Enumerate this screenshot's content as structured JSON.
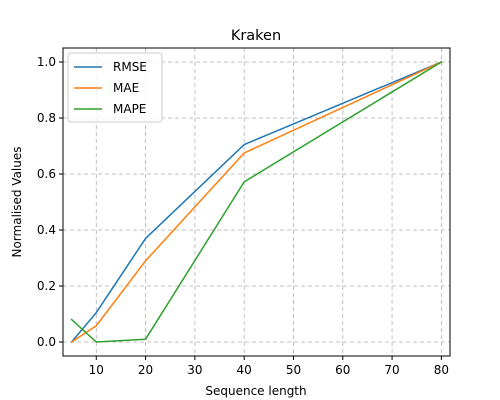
{
  "chart_data": {
    "type": "line",
    "title": "Kraken",
    "xlabel": "Sequence length",
    "ylabel": "Normalised Values",
    "xlim": [
      3.25,
      81.75
    ],
    "ylim": [
      -0.05,
      1.05
    ],
    "xticks": [
      10,
      20,
      30,
      40,
      50,
      60,
      70,
      80
    ],
    "yticks": [
      0.0,
      0.2,
      0.4,
      0.6,
      0.8,
      1.0
    ],
    "ytick_labels": [
      "0.0",
      "0.2",
      "0.4",
      "0.6",
      "0.8",
      "1.0"
    ],
    "grid": true,
    "legend_position": "upper-left",
    "x": [
      5,
      10,
      20,
      40,
      80
    ],
    "series": [
      {
        "name": "RMSE",
        "color": "#1f77b4",
        "values": [
          0.0,
          0.105,
          0.37,
          0.705,
          1.0
        ]
      },
      {
        "name": "MAE",
        "color": "#ff7f0e",
        "values": [
          0.0,
          0.058,
          0.29,
          0.675,
          1.0
        ]
      },
      {
        "name": "MAPE",
        "color": "#2ca02c",
        "values": [
          0.08,
          0.0,
          0.01,
          0.572,
          1.0
        ]
      }
    ]
  }
}
